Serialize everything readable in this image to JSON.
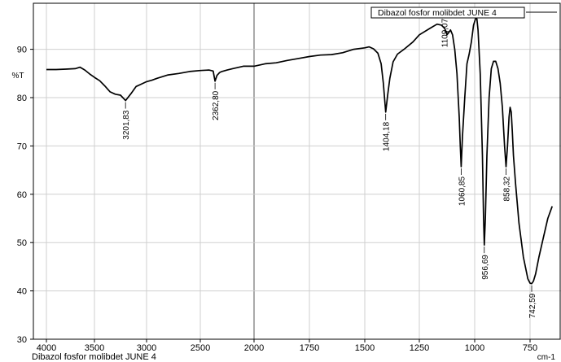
{
  "chart_data": {
    "type": "line",
    "title": "",
    "footer_label": "Dibazol fosfor molibdet JUNE 4",
    "legend": [
      "Dibazol fosfor molibdet JUNE 4"
    ],
    "xlabel": "cm-1",
    "ylabel": "%T",
    "xlim": [
      4000,
      650
    ],
    "ylim": [
      30,
      98
    ],
    "x_reversed": true,
    "grid": true,
    "legend_position": "top-right",
    "x_ticks": [
      4000,
      3500,
      3000,
      2500,
      2000,
      1750,
      1500,
      1250,
      1000,
      750
    ],
    "x_tick_labels": [
      "4000",
      "3500",
      "3000",
      "2500",
      "2000",
      "1750",
      "1500",
      "1250",
      "1000",
      "750"
    ],
    "y_ticks": [
      30,
      40,
      50,
      60,
      70,
      80,
      90
    ],
    "y_tick_labels": [
      "30",
      "40",
      "50",
      "60",
      "70",
      "80",
      "90"
    ],
    "series": [
      {
        "name": "Dibazol fosfor molibdet JUNE 4",
        "color": "#000000",
        "x": [
          4000,
          3900,
          3800,
          3700,
          3650,
          3600,
          3550,
          3500,
          3450,
          3400,
          3350,
          3300,
          3250,
          3201.83,
          3150,
          3100,
          3050,
          3000,
          2950,
          2900,
          2800,
          2700,
          2600,
          2500,
          2420,
          2380,
          2362.8,
          2345,
          2320,
          2300,
          2250,
          2200,
          2100,
          2000,
          1950,
          1900,
          1850,
          1800,
          1750,
          1700,
          1650,
          1600,
          1550,
          1500,
          1480,
          1460,
          1440,
          1425,
          1415,
          1404.18,
          1395,
          1385,
          1370,
          1350,
          1320,
          1280,
          1250,
          1200,
          1170,
          1150,
          1135,
          1125,
          1115,
          1109.07,
          1100,
          1090,
          1080,
          1070,
          1065,
          1060.85,
          1055,
          1045,
          1035,
          1025,
          1015,
          1005,
          995,
          990,
          985,
          975,
          965,
          960,
          956.69,
          952,
          945,
          935,
          925,
          915,
          905,
          895,
          885,
          875,
          865,
          858.32,
          852,
          845,
          840,
          835,
          830,
          825,
          815,
          800,
          780,
          760,
          750,
          742.59,
          735,
          725,
          710,
          690,
          670,
          650
        ],
        "y": [
          85.8,
          85.8,
          85.9,
          86.0,
          86.3,
          85.7,
          84.9,
          84.2,
          83.5,
          82.4,
          81.2,
          80.7,
          80.5,
          79.4,
          80.8,
          82.3,
          82.8,
          83.3,
          83.6,
          84.0,
          84.7,
          85.0,
          85.4,
          85.6,
          85.7,
          85.5,
          83.4,
          84.6,
          85.2,
          85.4,
          85.7,
          86.0,
          86.5,
          86.5,
          87.0,
          87.2,
          87.7,
          88.1,
          88.5,
          88.8,
          88.9,
          89.3,
          90.0,
          90.3,
          90.5,
          90.1,
          89.2,
          87.0,
          83.0,
          77.0,
          80.5,
          84.0,
          87.4,
          89.0,
          90.0,
          91.5,
          93.0,
          94.4,
          95.2,
          95.0,
          94.3,
          93.0,
          93.6,
          94.0,
          93.0,
          90.0,
          85.0,
          76.0,
          70.0,
          65.7,
          72.0,
          80.0,
          87.0,
          89.0,
          91.5,
          95.0,
          96.5,
          96.3,
          94.0,
          85.0,
          68.0,
          55.0,
          49.5,
          55.0,
          68.0,
          80.0,
          86.0,
          87.5,
          87.5,
          86.0,
          83.0,
          78.0,
          70.0,
          65.7,
          70.0,
          76.0,
          78.0,
          77.0,
          73.0,
          68.0,
          62.0,
          54.0,
          47.0,
          42.5,
          41.6,
          41.5,
          42.0,
          43.5,
          47.0,
          51.0,
          55.0,
          57.5
        ]
      }
    ],
    "annotations": [
      {
        "x": 3201.83,
        "y": 79.4,
        "text": "3201,83"
      },
      {
        "x": 2362.8,
        "y": 83.4,
        "text": "2362,80"
      },
      {
        "x": 1404.18,
        "y": 77.0,
        "text": "1404,18"
      },
      {
        "x": 1109.07,
        "y": 94.0,
        "text": "1109,07"
      },
      {
        "x": 1060.85,
        "y": 65.7,
        "text": "1060,85"
      },
      {
        "x": 956.69,
        "y": 49.5,
        "text": "956,69"
      },
      {
        "x": 858.32,
        "y": 65.7,
        "text": "858,32"
      },
      {
        "x": 742.59,
        "y": 41.5,
        "text": "742,59"
      }
    ]
  }
}
